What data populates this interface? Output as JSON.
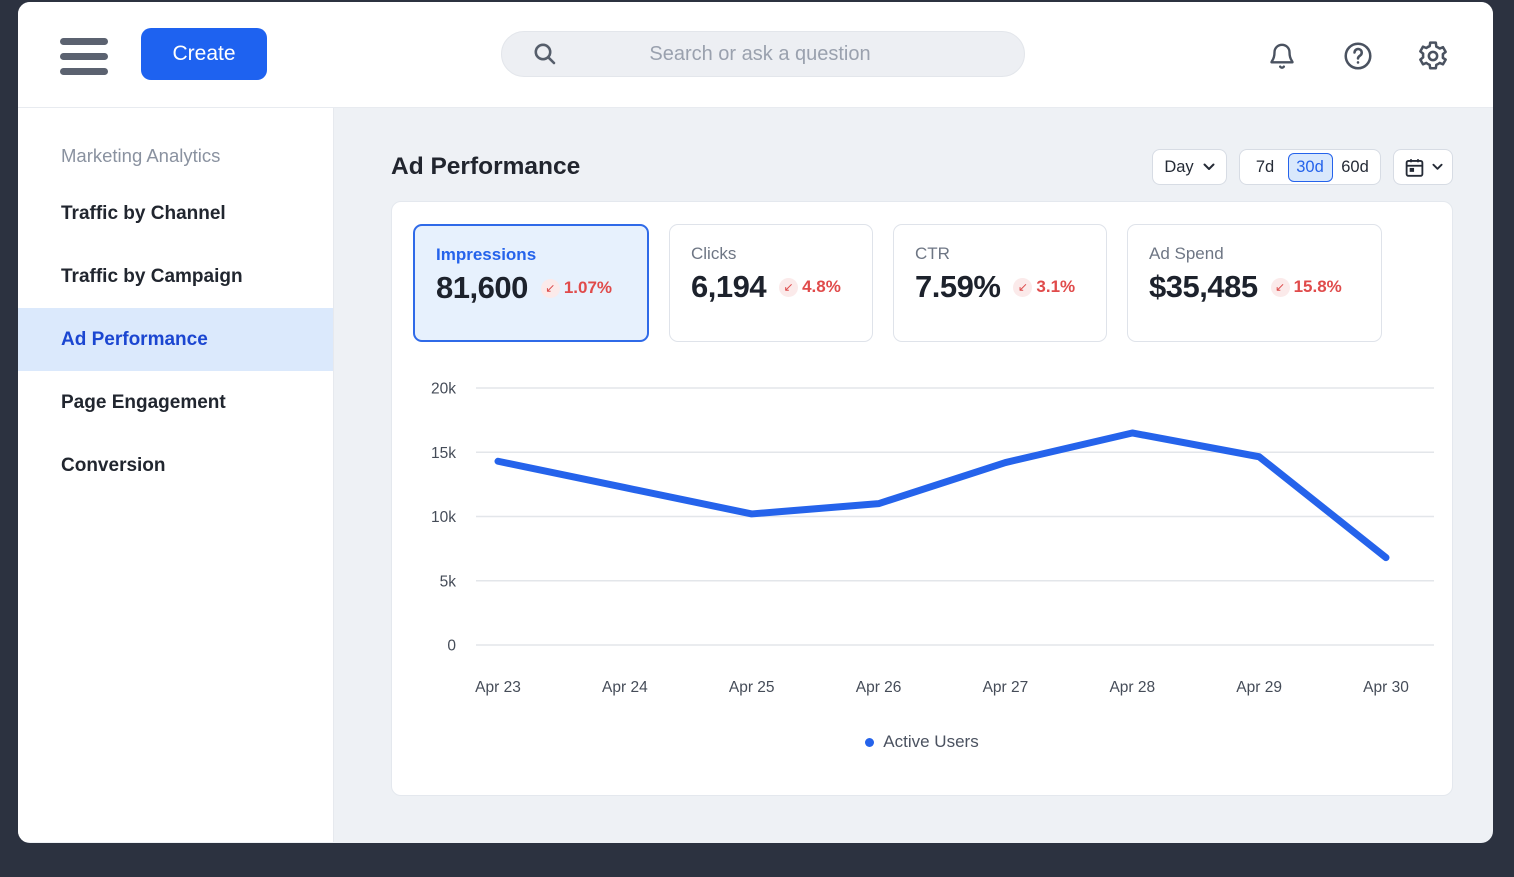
{
  "header": {
    "create_label": "Create",
    "search_placeholder": "Search or ask a question"
  },
  "sidebar": {
    "section_title": "Marketing Analytics",
    "items": [
      {
        "label": "Traffic by Channel",
        "active": false
      },
      {
        "label": "Traffic by Campaign",
        "active": false
      },
      {
        "label": "Ad Performance",
        "active": true
      },
      {
        "label": "Page Engagement",
        "active": false
      },
      {
        "label": "Conversion",
        "active": false
      }
    ]
  },
  "main": {
    "title": "Ad Performance",
    "controls": {
      "granularity": "Day",
      "ranges": [
        {
          "label": "7d",
          "selected": false
        },
        {
          "label": "30d",
          "selected": true
        },
        {
          "label": "60d",
          "selected": false
        }
      ]
    },
    "metrics": [
      {
        "label": "Impressions",
        "value": "81,600",
        "delta": "1.07%",
        "direction": "down",
        "selected": true
      },
      {
        "label": "Clicks",
        "value": "6,194",
        "delta": "4.8%",
        "direction": "down",
        "selected": false
      },
      {
        "label": "CTR",
        "value": "7.59%",
        "delta": "3.1%",
        "direction": "down",
        "selected": false
      },
      {
        "label": "Ad Spend",
        "value": "$35,485",
        "delta": "15.8%",
        "direction": "down",
        "selected": false
      }
    ]
  },
  "chart_data": {
    "type": "line",
    "x": [
      "Apr 23",
      "Apr 24",
      "Apr 25",
      "Apr 26",
      "Apr 27",
      "Apr 28",
      "Apr 29",
      "Apr 30"
    ],
    "series": [
      {
        "name": "Active Users",
        "values": [
          14300,
          12250,
          10200,
          11000,
          14200,
          16500,
          14650,
          6800
        ],
        "color": "#2563eb"
      }
    ],
    "ylim": [
      0,
      20000
    ],
    "yticks": [
      0,
      5000,
      10000,
      15000,
      20000
    ],
    "ytick_labels": [
      "0",
      "5k",
      "10k",
      "15k",
      "20k"
    ],
    "grid": true,
    "legend_position": "bottom"
  },
  "colors": {
    "accent": "#2563eb",
    "negative": "#e04b4b",
    "frame": "#2c3240",
    "selected_card_bg": "#e7f1fd",
    "gridline": "#e3e6ea"
  }
}
